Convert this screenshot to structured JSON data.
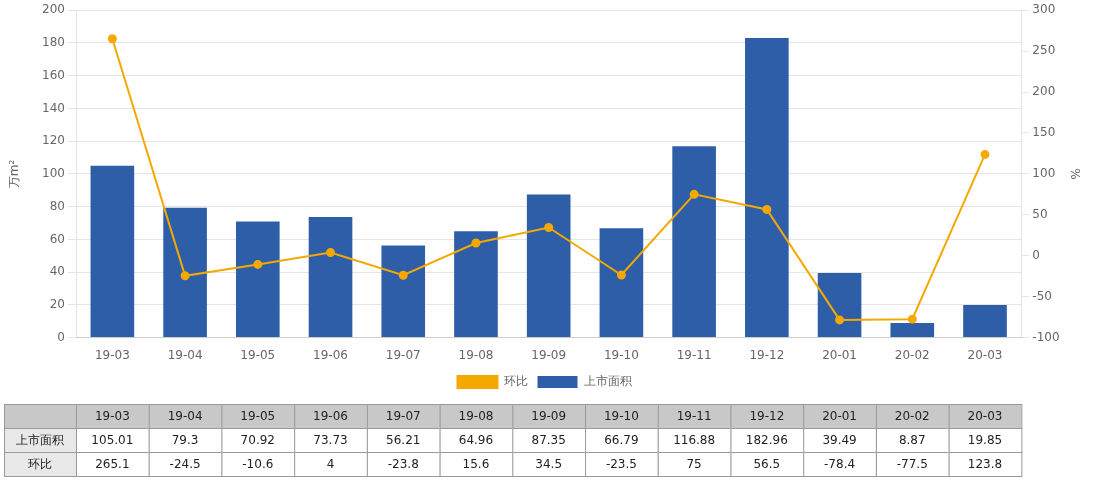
{
  "chart_data": {
    "type": "bar",
    "categories": [
      "19-03",
      "19-04",
      "19-05",
      "19-06",
      "19-07",
      "19-08",
      "19-09",
      "19-10",
      "19-11",
      "19-12",
      "20-01",
      "20-02",
      "20-03"
    ],
    "ylabel": "万m²",
    "y2label": "%",
    "ylim": [
      0,
      200
    ],
    "yticks": [
      0,
      20,
      40,
      60,
      80,
      100,
      120,
      140,
      160,
      180,
      200
    ],
    "y2lim": [
      -100,
      300
    ],
    "y2ticks": [
      -100,
      -50,
      0,
      50,
      100,
      150,
      200,
      250,
      300
    ],
    "grid": true,
    "legend": "bottom",
    "series": [
      {
        "name": "上市面积",
        "type": "bar",
        "color": "#2E5EA8",
        "values": [
          105.01,
          79.3,
          70.92,
          73.73,
          56.21,
          64.96,
          87.35,
          66.79,
          116.88,
          182.96,
          39.49,
          8.87,
          19.85
        ]
      },
      {
        "name": "环比",
        "type": "line",
        "color": "#F5A800",
        "marker": "circle",
        "axis": "y2",
        "values": [
          265.1,
          -24.5,
          -10.6,
          4,
          -23.8,
          15.6,
          34.5,
          -23.5,
          75,
          56.5,
          -78.4,
          -77.5,
          123.8
        ]
      }
    ]
  }
}
